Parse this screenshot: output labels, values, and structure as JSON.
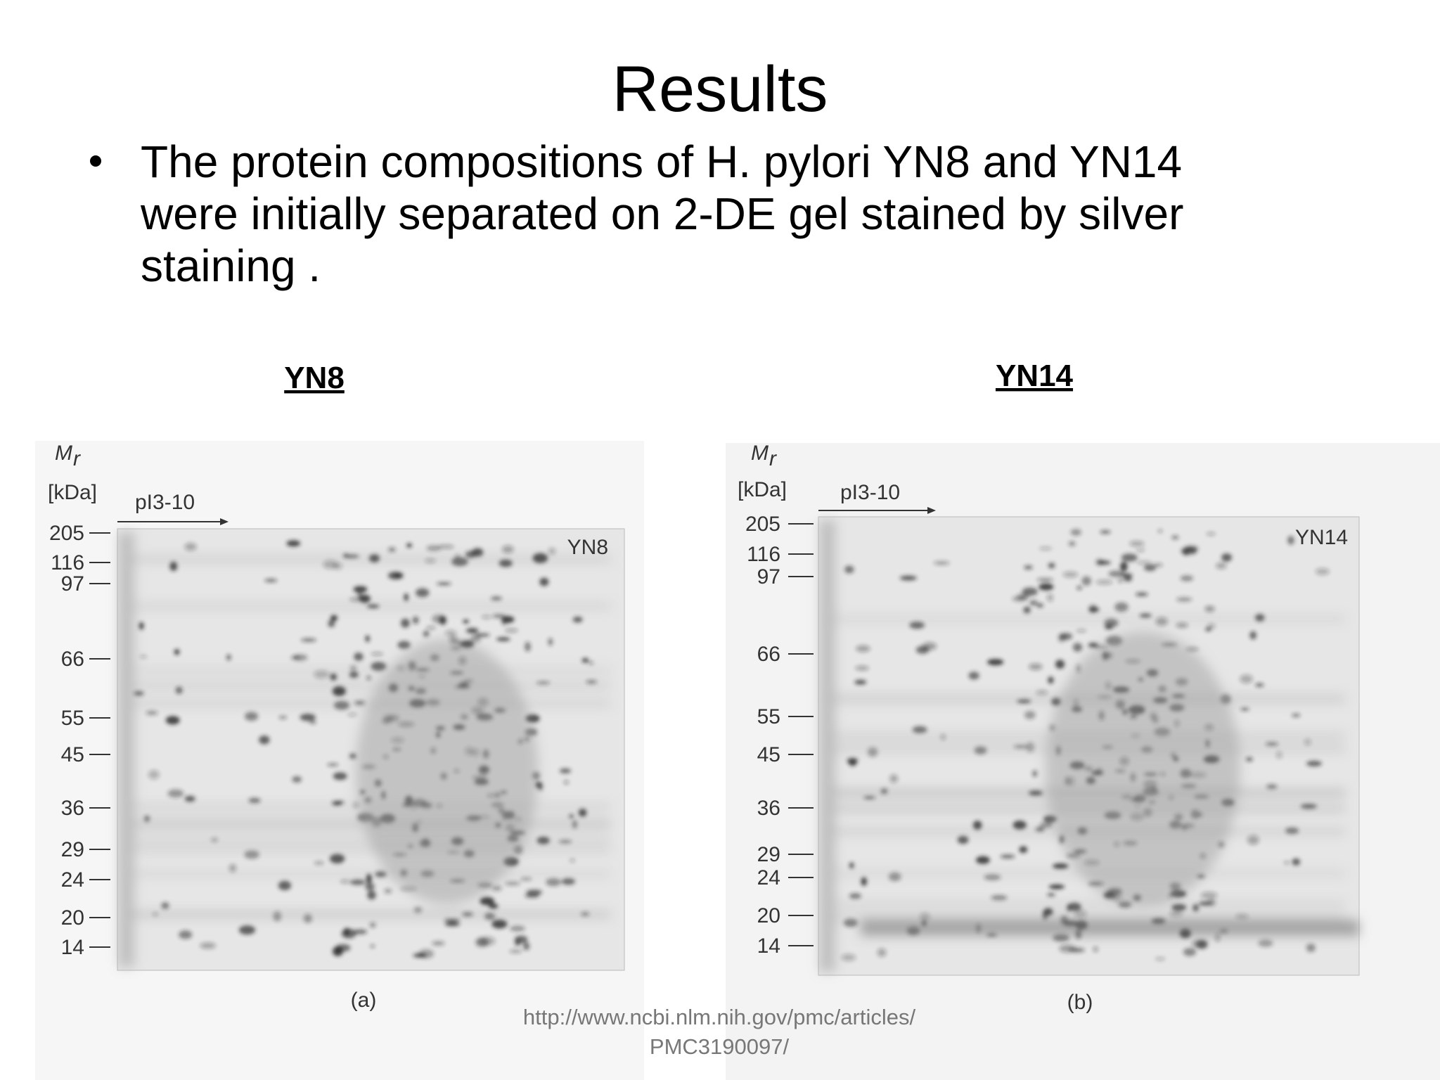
{
  "title": "Results",
  "bullet": {
    "lines": [
      "The protein compositions of H. pylori YN8 and YN14",
      "were initially separated on 2-DE gel stained  by silver",
      "staining ."
    ]
  },
  "panels": [
    {
      "label": "YN8",
      "figure": {
        "mr": "M",
        "mr_sub": "r",
        "unit": "[kDa]",
        "pi": "pI3-10",
        "sample": "YN8",
        "markers": [
          "205",
          "116",
          "97",
          "66",
          "55",
          "45",
          "36",
          "29",
          "24",
          "20",
          "14"
        ],
        "caption": "(a)"
      }
    },
    {
      "label": "YN14",
      "figure": {
        "mr": "M",
        "mr_sub": "r",
        "unit": "[kDa]",
        "pi": "pI3-10",
        "sample": "YN14",
        "markers": [
          "205",
          "116",
          "97",
          "66",
          "55",
          "45",
          "36",
          "29",
          "24",
          "20",
          "14"
        ],
        "caption": "(b)"
      }
    }
  ],
  "source": [
    "http://www.ncbi.nlm.nih.gov/pmc/articles/",
    "PMC3190097/"
  ]
}
